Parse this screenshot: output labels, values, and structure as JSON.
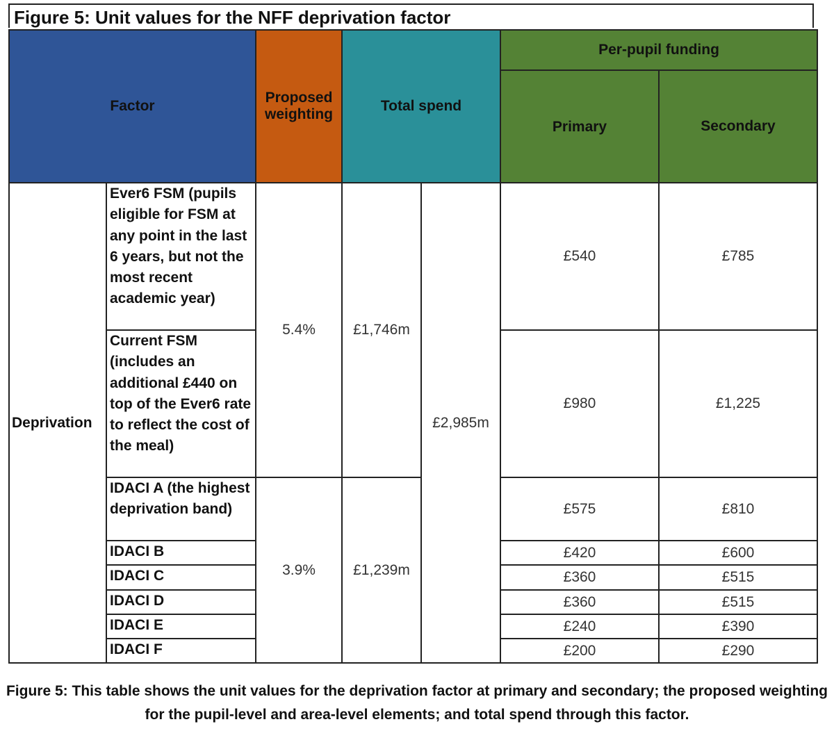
{
  "title": "Figure 5: Unit values for the NFF deprivation factor",
  "header": {
    "factor": "Factor",
    "weighting": "Proposed weighting",
    "total_spend": "Total spend",
    "per_pupil": "Per-pupil funding",
    "primary": "Primary",
    "secondary": "Secondary"
  },
  "colors": {
    "factor": "#2f5597",
    "weighting": "#c55a11",
    "total_spend": "#2a9099",
    "per_pupil": "#548235"
  },
  "factor_group": "Deprivation",
  "groups": [
    {
      "weighting": "5.4%",
      "spend": "£1,746m"
    },
    {
      "weighting": "3.9%",
      "spend": "£1,239m"
    }
  ],
  "total_spend_all": "£2,985m",
  "rows": [
    {
      "label": "Ever6 FSM (pupils eligible for FSM at any point in the last 6 years, but not the most recent academic year)",
      "primary": "£540",
      "secondary": "£785"
    },
    {
      "label": "Current FSM (includes an additional £440 on top of the Ever6 rate to reflect the cost of the meal)",
      "primary": "£980",
      "secondary": "£1,225"
    },
    {
      "label": "IDACI  A (the highest deprivation band)",
      "primary": "£575",
      "secondary": "£810"
    },
    {
      "label": "IDACI B",
      "primary": "£420",
      "secondary": "£600"
    },
    {
      "label": "IDACI C",
      "primary": "£360",
      "secondary": "£515"
    },
    {
      "label": "IDACI D",
      "primary": "£360",
      "secondary": "£515"
    },
    {
      "label": "IDACI E",
      "primary": "£240",
      "secondary": "£390"
    },
    {
      "label": "IDACI F",
      "primary": "£200",
      "secondary": "£290"
    }
  ],
  "caption": "Figure 5: This table shows the unit values for the deprivation factor at primary and secondary; the proposed weighting for the pupil-level and area-level elements; and total spend through this factor."
}
